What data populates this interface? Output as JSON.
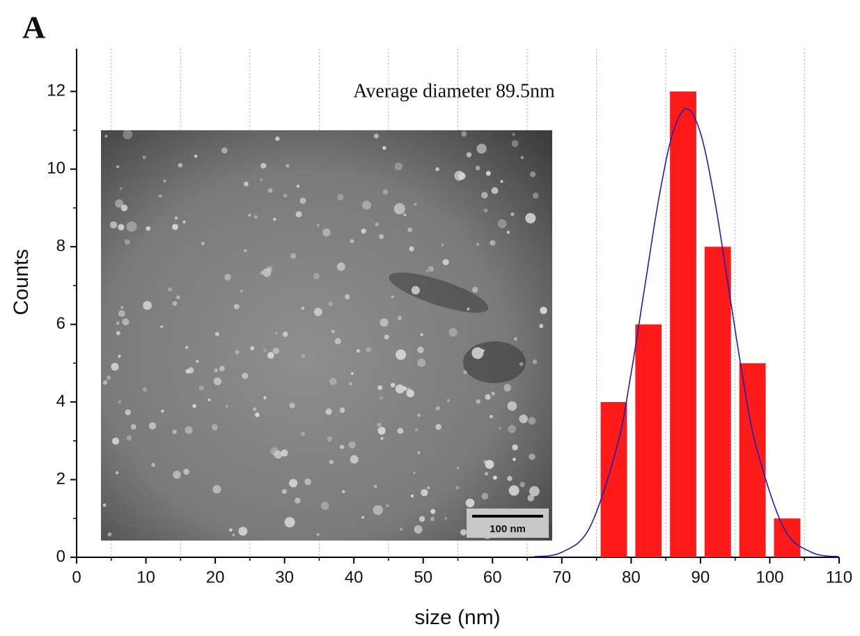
{
  "chart_data": {
    "type": "histogram",
    "panel_label": "A",
    "annotation": "Average diameter 89.5nm",
    "xlabel": "size (nm)",
    "ylabel": "Counts",
    "bins": [
      75,
      80,
      85,
      90,
      95,
      100,
      105
    ],
    "values": [
      4,
      6,
      12,
      8,
      5,
      1
    ],
    "color": "#ff1a1a",
    "xlim": [
      0,
      110
    ],
    "xticks": [
      0,
      10,
      20,
      30,
      40,
      50,
      60,
      70,
      80,
      90,
      100,
      110
    ],
    "ylim": [
      0,
      13.1
    ],
    "yticks": [
      0,
      2,
      4,
      6,
      8,
      10,
      12
    ],
    "grid": true,
    "fit": {
      "type": "line",
      "color": "#1f1fa8",
      "x": [
        66,
        70,
        74,
        78,
        80,
        82,
        84,
        86,
        88,
        90,
        92,
        94,
        96,
        98,
        102,
        106,
        110
      ],
      "values": [
        0.014,
        0.13,
        0.76,
        2.88,
        4.75,
        7.01,
        9.25,
        10.93,
        11.55,
        10.93,
        9.25,
        7.01,
        4.75,
        2.88,
        0.76,
        0.13,
        0.014
      ]
    },
    "inset_scale_bar": "100 nm"
  }
}
